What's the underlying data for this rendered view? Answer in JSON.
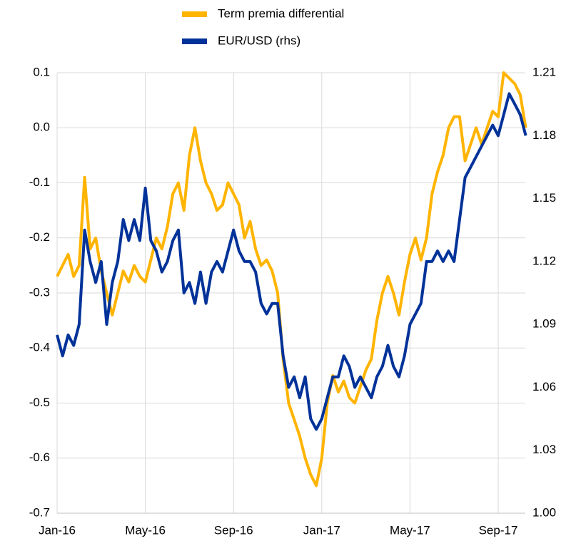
{
  "chart_data": {
    "type": "line",
    "categories": [
      "Jan-16",
      null,
      null,
      null,
      null,
      null,
      null,
      null,
      null,
      null,
      null,
      null,
      null,
      null,
      null,
      null,
      "May-16",
      null,
      null,
      null,
      null,
      null,
      null,
      null,
      null,
      null,
      null,
      null,
      null,
      null,
      null,
      null,
      "Sep-16",
      null,
      null,
      null,
      null,
      null,
      null,
      null,
      null,
      null,
      null,
      null,
      null,
      null,
      null,
      null,
      "Jan-17",
      null,
      null,
      null,
      null,
      null,
      null,
      null,
      null,
      null,
      null,
      null,
      null,
      null,
      null,
      null,
      "May-17",
      null,
      null,
      null,
      null,
      null,
      null,
      null,
      null,
      null,
      null,
      null,
      null,
      null,
      null,
      null,
      "Sep-17",
      null,
      null,
      null,
      null,
      null
    ],
    "series": [
      {
        "name": "Term premia differential",
        "color": "#ffb400",
        "values": [
          -0.27,
          -0.25,
          -0.23,
          -0.27,
          -0.25,
          -0.09,
          -0.22,
          -0.2,
          -0.26,
          -0.3,
          -0.34,
          -0.3,
          -0.26,
          -0.28,
          -0.25,
          -0.27,
          -0.28,
          -0.24,
          -0.2,
          -0.22,
          -0.18,
          -0.12,
          -0.1,
          -0.15,
          -0.05,
          0.0,
          -0.06,
          -0.1,
          -0.12,
          -0.15,
          -0.14,
          -0.1,
          -0.12,
          -0.14,
          -0.2,
          -0.17,
          -0.22,
          -0.25,
          -0.24,
          -0.26,
          -0.3,
          -0.42,
          -0.5,
          -0.53,
          -0.56,
          -0.6,
          -0.63,
          -0.65,
          -0.6,
          -0.5,
          -0.45,
          -0.48,
          -0.46,
          -0.49,
          -0.5,
          -0.47,
          -0.44,
          -0.42,
          -0.35,
          -0.3,
          -0.27,
          -0.3,
          -0.34,
          -0.28,
          -0.23,
          -0.2,
          -0.24,
          -0.2,
          -0.12,
          -0.08,
          -0.05,
          0.0,
          0.02,
          0.02,
          -0.06,
          -0.03,
          0.0,
          -0.03,
          0.0,
          0.03,
          0.02,
          0.1,
          0.09,
          0.08,
          0.06,
          0.0
        ]
      },
      {
        "name": "EUR/USD (rhs)",
        "color": "#003299",
        "axis": "y2",
        "values": [
          1.085,
          1.075,
          1.085,
          1.08,
          1.09,
          1.135,
          1.12,
          1.11,
          1.12,
          1.09,
          1.11,
          1.12,
          1.14,
          1.13,
          1.14,
          1.13,
          1.155,
          1.13,
          1.125,
          1.115,
          1.12,
          1.13,
          1.135,
          1.105,
          1.11,
          1.1,
          1.115,
          1.1,
          1.115,
          1.12,
          1.115,
          1.125,
          1.135,
          1.125,
          1.12,
          1.12,
          1.115,
          1.1,
          1.095,
          1.1,
          1.1,
          1.075,
          1.06,
          1.065,
          1.055,
          1.065,
          1.045,
          1.04,
          1.045,
          1.055,
          1.065,
          1.065,
          1.075,
          1.07,
          1.06,
          1.065,
          1.06,
          1.055,
          1.065,
          1.07,
          1.08,
          1.07,
          1.065,
          1.075,
          1.09,
          1.095,
          1.1,
          1.12,
          1.12,
          1.125,
          1.12,
          1.125,
          1.12,
          1.14,
          1.16,
          1.165,
          1.17,
          1.175,
          1.18,
          1.185,
          1.18,
          1.19,
          1.2,
          1.195,
          1.19,
          1.18
        ]
      }
    ],
    "ylim": [
      -0.7,
      0.1
    ],
    "yticks": [
      -0.7,
      -0.6,
      -0.5,
      -0.4,
      -0.3,
      -0.2,
      -0.1,
      {
        "value": 0,
        "label": "0.0"
      },
      0.1
    ],
    "y2lim": [
      1.0,
      1.21
    ],
    "y2ticks": [
      {
        "value": 1.0,
        "label": "1.00"
      },
      1.03,
      1.06,
      1.09,
      1.12,
      1.15,
      1.18,
      1.21
    ],
    "grid": true
  }
}
